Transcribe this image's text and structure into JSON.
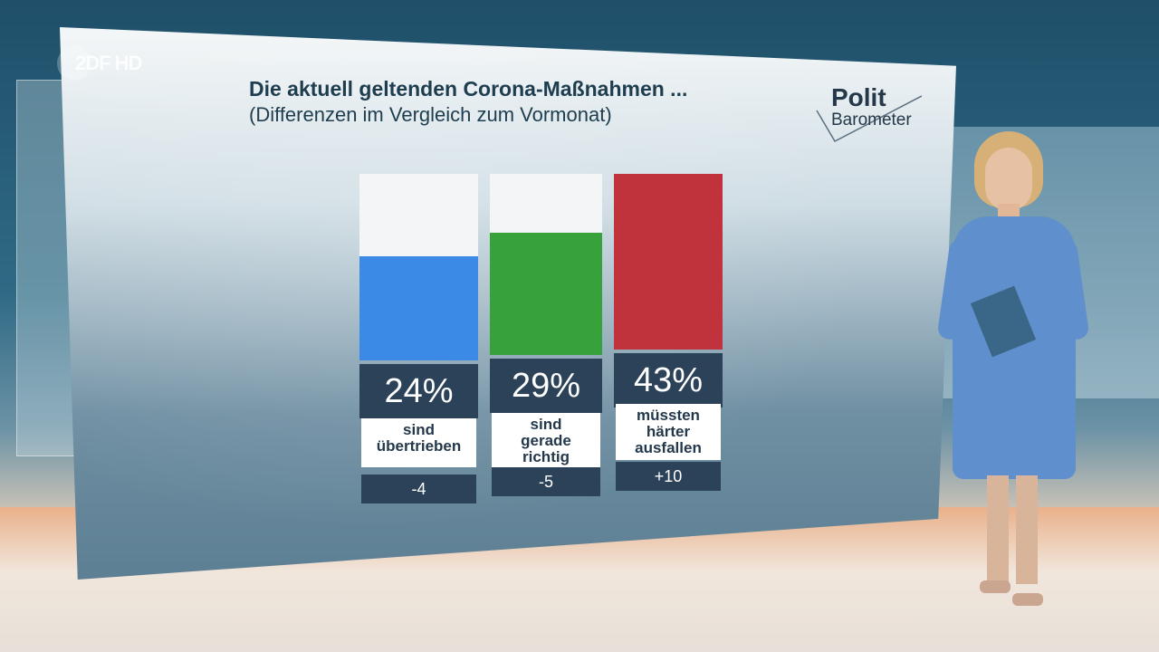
{
  "broadcaster": {
    "logo_text": "2DF HD"
  },
  "header": {
    "title": "Die aktuell geltenden Corona-Maßnahmen ...",
    "subtitle": "(Differenzen im Vergleich zum Vormonat)"
  },
  "brand": {
    "line1": "Polit",
    "line2": "Barometer"
  },
  "chart_data": {
    "type": "bar",
    "title": "Die aktuell geltenden Corona-Maßnahmen ...",
    "subtitle": "(Differenzen im Vergleich zum Vormonat)",
    "categories": [
      "sind übertrieben",
      "sind gerade richtig",
      "müssten härter ausfallen"
    ],
    "values": [
      24,
      29,
      43
    ],
    "value_labels": [
      "24%",
      "29%",
      "43%"
    ],
    "category_lines": [
      [
        "sind",
        "übertrieben"
      ],
      [
        "sind",
        "gerade",
        "richtig"
      ],
      [
        "müssten",
        "härter",
        "ausfallen"
      ]
    ],
    "differences": [
      "-4",
      "-5",
      "+10"
    ],
    "colors": [
      "#3a8ae6",
      "#37a23c",
      "#c0333c"
    ],
    "ylim": [
      0,
      43
    ],
    "grid": false,
    "legend": "none"
  }
}
